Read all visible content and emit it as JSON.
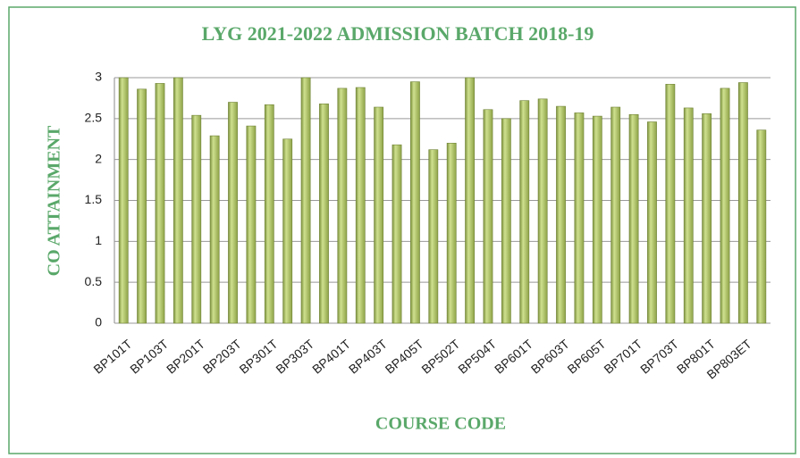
{
  "chart_data": {
    "type": "bar",
    "title": "LYG 2021-2022 ADMISSION BATCH 2018-19",
    "xlabel": "COURSE CODE",
    "ylabel": "CO ATTAINMENT",
    "categories": [
      "BP101T",
      null,
      "BP103T",
      null,
      "BP201T",
      null,
      "BP203T",
      null,
      "BP301T",
      null,
      "BP303T",
      null,
      "BP401T",
      null,
      "BP403T",
      null,
      "BP405T",
      null,
      "BP502T",
      null,
      "BP504T",
      null,
      "BP601T",
      null,
      "BP603T",
      null,
      "BP605T",
      null,
      "BP701T",
      null,
      "BP703T",
      null,
      "BP801T",
      null,
      "BP803ET",
      null
    ],
    "values": [
      3.0,
      2.86,
      2.93,
      3.0,
      2.54,
      2.29,
      2.7,
      2.41,
      2.67,
      2.25,
      3.0,
      2.68,
      2.87,
      2.88,
      2.64,
      2.18,
      2.95,
      2.12,
      2.2,
      3.0,
      2.61,
      2.5,
      2.72,
      2.74,
      2.65,
      2.57,
      2.53,
      2.64,
      2.55,
      2.46,
      2.92,
      2.63,
      2.56,
      2.87,
      2.94,
      2.36
    ],
    "color": "#a9bf5f",
    "ylim": [
      0,
      3
    ],
    "yticks": [
      0,
      0.5,
      1,
      1.5,
      2,
      2.5,
      3
    ],
    "grid": true
  }
}
